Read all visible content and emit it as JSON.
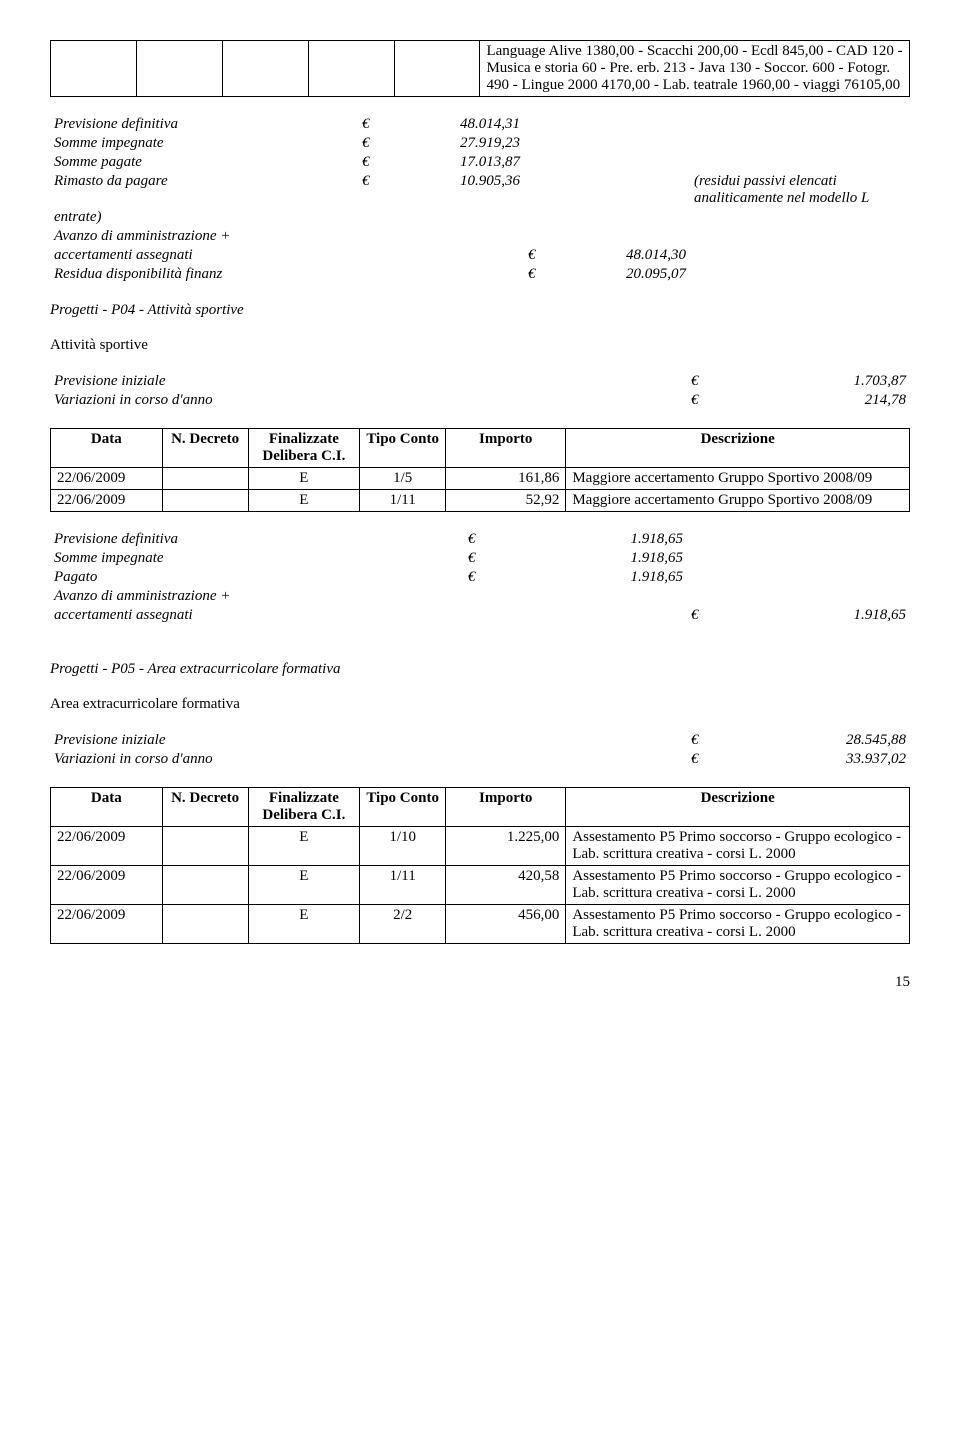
{
  "top": {
    "col_widths": [
      "10%",
      "10%",
      "10%",
      "10%",
      "10%",
      "50%"
    ],
    "desc_text": "Language Alive 1380,00 - Scacchi 200,00 - Ecdl 845,00 - CAD 120 - Musica e storia 60 - Pre. erb. 213 - Java 130 - Soccor. 600 - Fotogr. 490 - Lingue 2000  4170,00 - Lab. teatrale 1960,00 - viaggi 76105,00"
  },
  "fin1": {
    "lines": [
      {
        "label": "Previsione definitiva",
        "cur": "€",
        "val": "48.014,31"
      },
      {
        "label": "Somme impegnate",
        "cur": "€",
        "val": "27.919,23"
      },
      {
        "label": "Somme pagate",
        "cur": "€",
        "val": "17.013,87"
      },
      {
        "label": "Rimasto da pagare",
        "cur": "€",
        "val": "10.905,36",
        "suffix": "(residui passivi elencati analiticamente nel modello L"
      },
      {
        "label": "entrate)"
      },
      {
        "label": "Avanzo di amministrazione +"
      },
      {
        "label": "accertamenti assegnati",
        "cur2": "€",
        "val2": "48.014,30"
      },
      {
        "label": "Residua disponibilità finanz",
        "cur2": "€",
        "val2": "20.095,07"
      }
    ]
  },
  "section_p04": {
    "title": "Progetti - P04 - Attività sportive",
    "subtitle": "Attività sportive"
  },
  "fin2": {
    "lines": [
      {
        "label": "Previsione iniziale",
        "cur2": "€",
        "val2": "1.703,87"
      },
      {
        "label": "Variazioni in corso d'anno",
        "cur2": "€",
        "val2": "214,78"
      }
    ]
  },
  "table2": {
    "headers": [
      "Data",
      "N. Decreto",
      "Finalizzate Delibera C.I.",
      "Tipo Conto",
      "Importo",
      "Descrizione"
    ],
    "col_widths": [
      "13%",
      "10%",
      "13%",
      "10%",
      "14%",
      "40%"
    ],
    "rows": [
      {
        "date": "22/06/2009",
        "decreto": "",
        "fin": "E",
        "tipo": "1/5",
        "importo": "161,86",
        "desc": "Maggiore accertamento Gruppo Sportivo 2008/09"
      },
      {
        "date": "22/06/2009",
        "decreto": "",
        "fin": "E",
        "tipo": "1/11",
        "importo": "52,92",
        "desc": "Maggiore accertamento Gruppo Sportivo 2008/09"
      }
    ]
  },
  "fin3": {
    "lines": [
      {
        "label": "Previsione definitiva",
        "cur": "€",
        "val": "1.918,65"
      },
      {
        "label": "Somme impegnate",
        "cur": "€",
        "val": "1.918,65"
      },
      {
        "label": "Pagato",
        "cur": "€",
        "val": "1.918,65"
      },
      {
        "label": "Avanzo di amministrazione +"
      },
      {
        "label": "accertamenti assegnati",
        "cur2": "€",
        "val2": "1.918,65"
      }
    ]
  },
  "section_p05": {
    "title": "Progetti - P05 - Area extracurricolare formativa",
    "subtitle": "Area extracurricolare formativa"
  },
  "fin4": {
    "lines": [
      {
        "label": "Previsione iniziale",
        "cur2": "€",
        "val2": "28.545,88"
      },
      {
        "label": "Variazioni in corso d'anno",
        "cur2": "€",
        "val2": "33.937,02"
      }
    ]
  },
  "table3": {
    "headers": [
      "Data",
      "N. Decreto",
      "Finalizzate Delibera C.I.",
      "Tipo Conto",
      "Importo",
      "Descrizione"
    ],
    "col_widths": [
      "13%",
      "10%",
      "13%",
      "10%",
      "14%",
      "40%"
    ],
    "rows": [
      {
        "date": "22/06/2009",
        "decreto": "",
        "fin": "E",
        "tipo": "1/10",
        "importo": "1.225,00",
        "desc": "Assestamento P5 Primo soccorso - Gruppo ecologico - Lab. scrittura creativa - corsi L. 2000"
      },
      {
        "date": "22/06/2009",
        "decreto": "",
        "fin": "E",
        "tipo": "1/11",
        "importo": "420,58",
        "desc": "Assestamento P5 Primo soccorso - Gruppo ecologico - Lab. scrittura creativa - corsi L. 2000"
      },
      {
        "date": "22/06/2009",
        "decreto": "",
        "fin": "E",
        "tipo": "2/2",
        "importo": "456,00",
        "desc": "Assestamento P5 Primo soccorso - Gruppo ecologico - Lab. scrittura creativa - corsi L. 2000"
      }
    ]
  },
  "page_number": "15"
}
